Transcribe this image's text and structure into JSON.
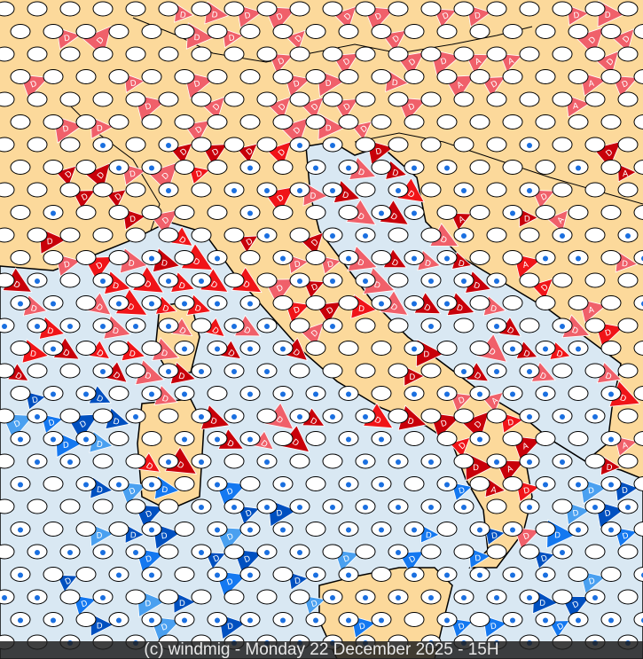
{
  "footer": {
    "text": "(c) windmig - Monday 22 December 2025 - 15H"
  },
  "colors": {
    "land": "#fcd99b",
    "sea": "#d9e8f3",
    "border": "#000000",
    "ellipse_fill": "#ffffff",
    "rain_drop": "#1a6fe0",
    "wind_red_dark": "#c8000a",
    "wind_red": "#f01418",
    "wind_red_light": "#f0606a",
    "wind_blue_dark": "#0050c0",
    "wind_blue": "#1478f0",
    "wind_blue_light": "#4aa0f0"
  },
  "wind_flag_letters": [
    "D",
    "A"
  ],
  "icons": [
    "cloud-ellipse-icon",
    "rain-drop-icon",
    "wind-flag-icon",
    "fog-icon"
  ]
}
